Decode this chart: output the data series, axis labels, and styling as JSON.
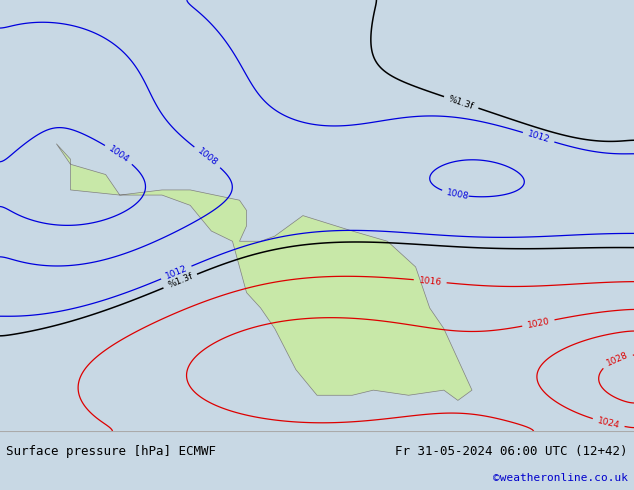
{
  "title": "Surface pressure [hPa] ECMWF",
  "date_label": "Fr 31-05-2024 06:00 UTC (12+42)",
  "credit": "©weatheronline.co.uk",
  "ocean_color": "#c8d8e4",
  "land_color": "#c8e8a8",
  "border_color": "#808080",
  "contour_blue": "#0000dd",
  "contour_red": "#dd0000",
  "contour_black": "#000000",
  "lon_min": -25,
  "lon_max": 65,
  "lat_min": -42,
  "lat_max": 42,
  "figsize": [
    6.34,
    4.9
  ],
  "dpi": 100,
  "bottom_bar_color": "#e0e0e0",
  "title_fontsize": 9,
  "credit_color": "#0000cc"
}
